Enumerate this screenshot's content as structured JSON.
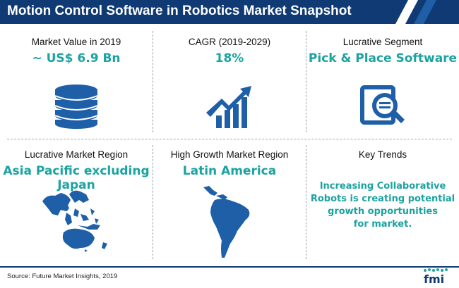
{
  "header": {
    "title": "Motion Control Software in Robotics Market Snapshot"
  },
  "cells": {
    "market_value": {
      "label": "Market Value in 2019",
      "value": "~ US$ 6.9 Bn",
      "icon": "coin-stack-icon"
    },
    "cagr": {
      "label": "CAGR (2019-2029)",
      "value": "18%",
      "icon": "growth-chart-icon"
    },
    "segment": {
      "label": "Lucrative Segment",
      "value": "Pick & Place Software",
      "icon": "document-search-icon"
    },
    "region": {
      "label": "Lucrative Market Region",
      "value_line1": "Asia Pacific excluding",
      "value_line2": "Japan",
      "icon": "asia-pacific-map-icon"
    },
    "growth_region": {
      "label": "High Growth Market Region",
      "value": "Latin America",
      "icon": "latin-america-map-icon"
    },
    "trends": {
      "label": "Key Trends",
      "line1": "Increasing Collaborative",
      "line2": "Robots is creating potential",
      "line3": "growth opportunities",
      "line4": "for market."
    }
  },
  "footer": {
    "source": "Source: Future Market Insights, 2019",
    "logo": "fmi"
  },
  "colors": {
    "primary": "#0f3a73",
    "accent": "#1aa3a0",
    "icon_blue": "#1e5fa8"
  }
}
